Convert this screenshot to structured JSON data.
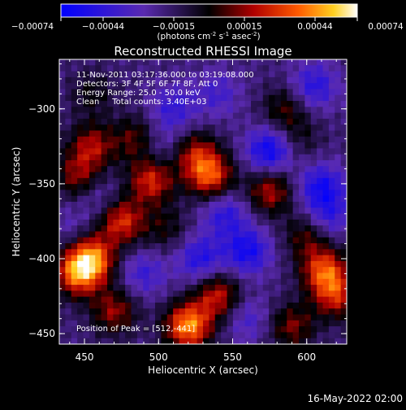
{
  "colorbar": {
    "ticks": [
      "-0.00074",
      "-0.00044",
      "-0.00015",
      "0.00015",
      "0.00044",
      "0.00074"
    ],
    "unit_prefix": "(photons cm",
    "unit_exp1": "-2",
    "unit_mid1": " s",
    "unit_exp2": "-1",
    "unit_mid2": " asec",
    "unit_exp3": "-2",
    "unit_suffix": ")",
    "range": [
      -0.00074,
      0.00074
    ]
  },
  "annotations": {
    "time_range": "11-Nov-2011 03:17:36.000 to 03:19:08.000",
    "detectors": "Detectors: 3F 4F 5F 6F 7F 8F, Att 0",
    "energy": "Energy Range: 25.0 - 50.0 keV",
    "clean": "Clean     Total counts: 3.40E+03",
    "peak": "Position of Peak = [512,-441]"
  },
  "footer": {
    "date": "16-May-2022 02:00"
  },
  "chart_data": {
    "type": "heatmap",
    "title": "Reconstructed RHESSI Image",
    "xlabel": "Heliocentric X (arcsec)",
    "ylabel": "Heliocentric Y (arcsec)",
    "xlim": [
      433,
      627
    ],
    "ylim": [
      -457,
      -267
    ],
    "x_ticks": [
      450,
      500,
      550,
      600
    ],
    "y_ticks": [
      -300,
      -350,
      -400,
      -450
    ],
    "colormap": "red-temperature (blue-purple-black-red-orange-yellow-white)",
    "value_range": [
      -0.00074,
      0.00074
    ],
    "peak_position": [
      512,
      -441
    ],
    "grid_cols": 48,
    "grid_rows": 48,
    "regions": [
      {
        "x": 455,
        "y": -400,
        "value": 0.00066
      },
      {
        "x": 445,
        "y": -410,
        "value": 0.0006
      },
      {
        "x": 520,
        "y": -445,
        "value": 0.00074
      },
      {
        "x": 540,
        "y": -425,
        "value": 0.00048
      },
      {
        "x": 495,
        "y": -348,
        "value": 0.00052
      },
      {
        "x": 485,
        "y": -320,
        "value": 0.00034
      },
      {
        "x": 455,
        "y": -325,
        "value": 0.00042
      },
      {
        "x": 445,
        "y": -345,
        "value": 0.00036
      },
      {
        "x": 535,
        "y": -345,
        "value": 0.00058
      },
      {
        "x": 525,
        "y": -330,
        "value": 0.0004
      },
      {
        "x": 575,
        "y": -355,
        "value": 0.00044
      },
      {
        "x": 612,
        "y": -408,
        "value": 0.00058
      },
      {
        "x": 620,
        "y": -425,
        "value": 0.00046
      },
      {
        "x": 505,
        "y": -380,
        "value": 0.00022
      },
      {
        "x": 590,
        "y": -445,
        "value": 0.00036
      },
      {
        "x": 585,
        "y": -300,
        "value": 0.00028
      },
      {
        "x": 595,
        "y": -320,
        "value": 0.00018
      },
      {
        "x": 470,
        "y": -435,
        "value": 0.0004
      },
      {
        "x": 455,
        "y": -290,
        "value": 0.0002
      },
      {
        "x": 475,
        "y": -375,
        "value": 0.00054
      },
      {
        "x": 600,
        "y": -385,
        "value": 0.0003
      },
      {
        "x": 560,
        "y": -395,
        "value": -0.00042
      },
      {
        "x": 545,
        "y": -370,
        "value": -0.00032
      },
      {
        "x": 575,
        "y": -328,
        "value": -0.00048
      },
      {
        "x": 610,
        "y": -352,
        "value": -0.0004
      },
      {
        "x": 510,
        "y": -300,
        "value": -0.00028
      },
      {
        "x": 540,
        "y": -290,
        "value": -0.00022
      },
      {
        "x": 605,
        "y": -285,
        "value": -0.00034
      },
      {
        "x": 528,
        "y": -400,
        "value": -0.00036
      },
      {
        "x": 490,
        "y": -410,
        "value": -0.00026
      },
      {
        "x": 500,
        "y": -325,
        "value": -0.00018
      },
      {
        "x": 560,
        "y": -440,
        "value": -0.00022
      },
      {
        "x": 615,
        "y": -372,
        "value": -0.00028
      },
      {
        "x": 460,
        "y": -360,
        "value": -0.00016
      },
      {
        "x": 440,
        "y": -380,
        "value": -0.00012
      }
    ]
  }
}
